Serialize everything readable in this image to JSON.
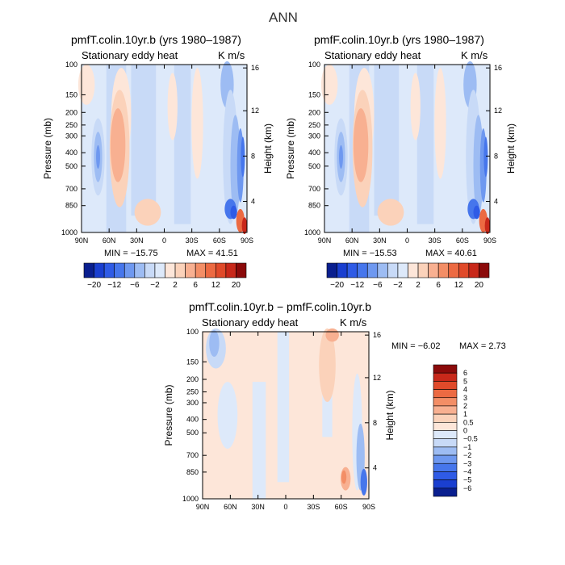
{
  "figure": {
    "title": "ANN"
  },
  "colors": {
    "blue6": "#0a1f8f",
    "blue5": "#1a3fd0",
    "blue4": "#2f5be6",
    "blue3": "#4676ec",
    "blue2": "#6e98f0",
    "blue1": "#9dbcf3",
    "blue0": "#c8daf7",
    "blue00": "#dde9fa",
    "red00": "#fde6d9",
    "red0": "#fbd2ba",
    "red1": "#f8b091",
    "red2": "#f38e66",
    "red3": "#ec6a42",
    "red4": "#e04a2a",
    "red5": "#c8281a",
    "red6": "#8b0a0a"
  },
  "chart_data": [
    {
      "id": "panel-a",
      "type": "heatmap",
      "title": "pmfT.colin.10yr.b (yrs 1980–1987)",
      "subtitle_left": "Stationary eddy heat",
      "subtitle_right": "K m/s",
      "ylabel": "Pressure (mb)",
      "ylabel_right": "Height (km)",
      "x_ticks": [
        "90N",
        "60N",
        "30N",
        "0",
        "30S",
        "60S",
        "90S"
      ],
      "y_ticks": [
        "100",
        "150",
        "200",
        "250",
        "300",
        "400",
        "500",
        "700",
        "850",
        "1000"
      ],
      "y_ticks_right": [
        "16",
        "12",
        "8",
        "4"
      ],
      "min_text": "MIN = −15.75",
      "max_text": "MAX = 41.51",
      "colorbar_labels": [
        "−20",
        "−12",
        "−6",
        "−2",
        "2",
        "6",
        "12",
        "20"
      ]
    },
    {
      "id": "panel-b",
      "type": "heatmap",
      "title": "pmfF.colin.10yr.b (yrs 1980–1987)",
      "subtitle_left": "Stationary eddy heat",
      "subtitle_right": "K m/s",
      "ylabel": "Pressure (mb)",
      "ylabel_right": "Height (km)",
      "x_ticks": [
        "90N",
        "60N",
        "30N",
        "0",
        "30S",
        "60S",
        "90S"
      ],
      "y_ticks": [
        "100",
        "150",
        "200",
        "250",
        "300",
        "400",
        "500",
        "700",
        "850",
        "1000"
      ],
      "y_ticks_right": [
        "16",
        "12",
        "8",
        "4"
      ],
      "min_text": "MIN = −15.53",
      "max_text": "MAX = 40.61",
      "colorbar_labels": [
        "−20",
        "−12",
        "−6",
        "−2",
        "2",
        "6",
        "12",
        "20"
      ]
    },
    {
      "id": "panel-c",
      "type": "heatmap",
      "title": "pmfT.colin.10yr.b − pmfF.colin.10yr.b",
      "subtitle_left": "Stationary eddy heat",
      "subtitle_right": "K m/s",
      "ylabel": "Pressure (mb)",
      "ylabel_right": "Height (km)",
      "x_ticks": [
        "90N",
        "60N",
        "30N",
        "0",
        "30S",
        "60S",
        "90S"
      ],
      "y_ticks": [
        "100",
        "150",
        "200",
        "250",
        "300",
        "400",
        "500",
        "700",
        "850",
        "1000"
      ],
      "y_ticks_right": [
        "16",
        "12",
        "8",
        "4"
      ],
      "min_text": "MIN = −6.02",
      "max_text": "MAX = 2.73",
      "colorbar_labels": [
        "6",
        "5",
        "4",
        "3",
        "2",
        "1",
        "0.5",
        "0",
        "−0.5",
        "−1",
        "−2",
        "−3",
        "−4",
        "−5",
        "−6"
      ]
    }
  ]
}
